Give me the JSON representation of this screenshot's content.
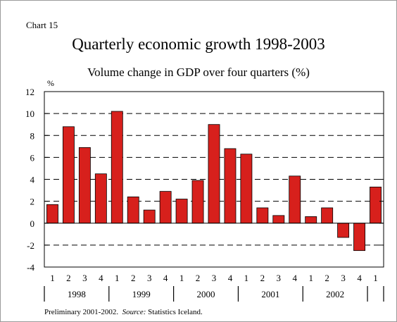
{
  "chart_label": "Chart 15",
  "footnote": {
    "prefix": "Preliminary 2001-2002.",
    "source_label": "Source:",
    "source_text": "Statistics Iceland."
  },
  "colors": {
    "bar": "#d7201c",
    "bar_edge": "#000000",
    "grid": "#000000"
  },
  "chart_data": {
    "type": "bar",
    "title": "Quarterly economic growth 1998-2003",
    "subtitle": "Volume change in GDP over four quarters (%)",
    "ylabel": "%",
    "ylim": [
      -4,
      12
    ],
    "yticks": [
      -4,
      -2,
      0,
      2,
      4,
      6,
      8,
      10,
      12
    ],
    "grid": "dashed horizontal",
    "categories": [
      "1",
      "2",
      "3",
      "4",
      "1",
      "2",
      "3",
      "4",
      "1",
      "2",
      "3",
      "4",
      "1",
      "2",
      "3",
      "4",
      "1",
      "2",
      "3",
      "4",
      "1"
    ],
    "year_groups": [
      {
        "label": "1998",
        "count": 4
      },
      {
        "label": "1999",
        "count": 4
      },
      {
        "label": "2000",
        "count": 4
      },
      {
        "label": "2001",
        "count": 4
      },
      {
        "label": "2002",
        "count": 4
      },
      {
        "label": "",
        "count": 1
      }
    ],
    "values": [
      1.7,
      8.8,
      6.9,
      4.5,
      10.2,
      2.4,
      1.2,
      2.9,
      2.2,
      3.9,
      9.0,
      6.8,
      6.3,
      1.4,
      0.7,
      4.3,
      0.6,
      1.4,
      -1.3,
      -2.5,
      3.3
    ]
  }
}
